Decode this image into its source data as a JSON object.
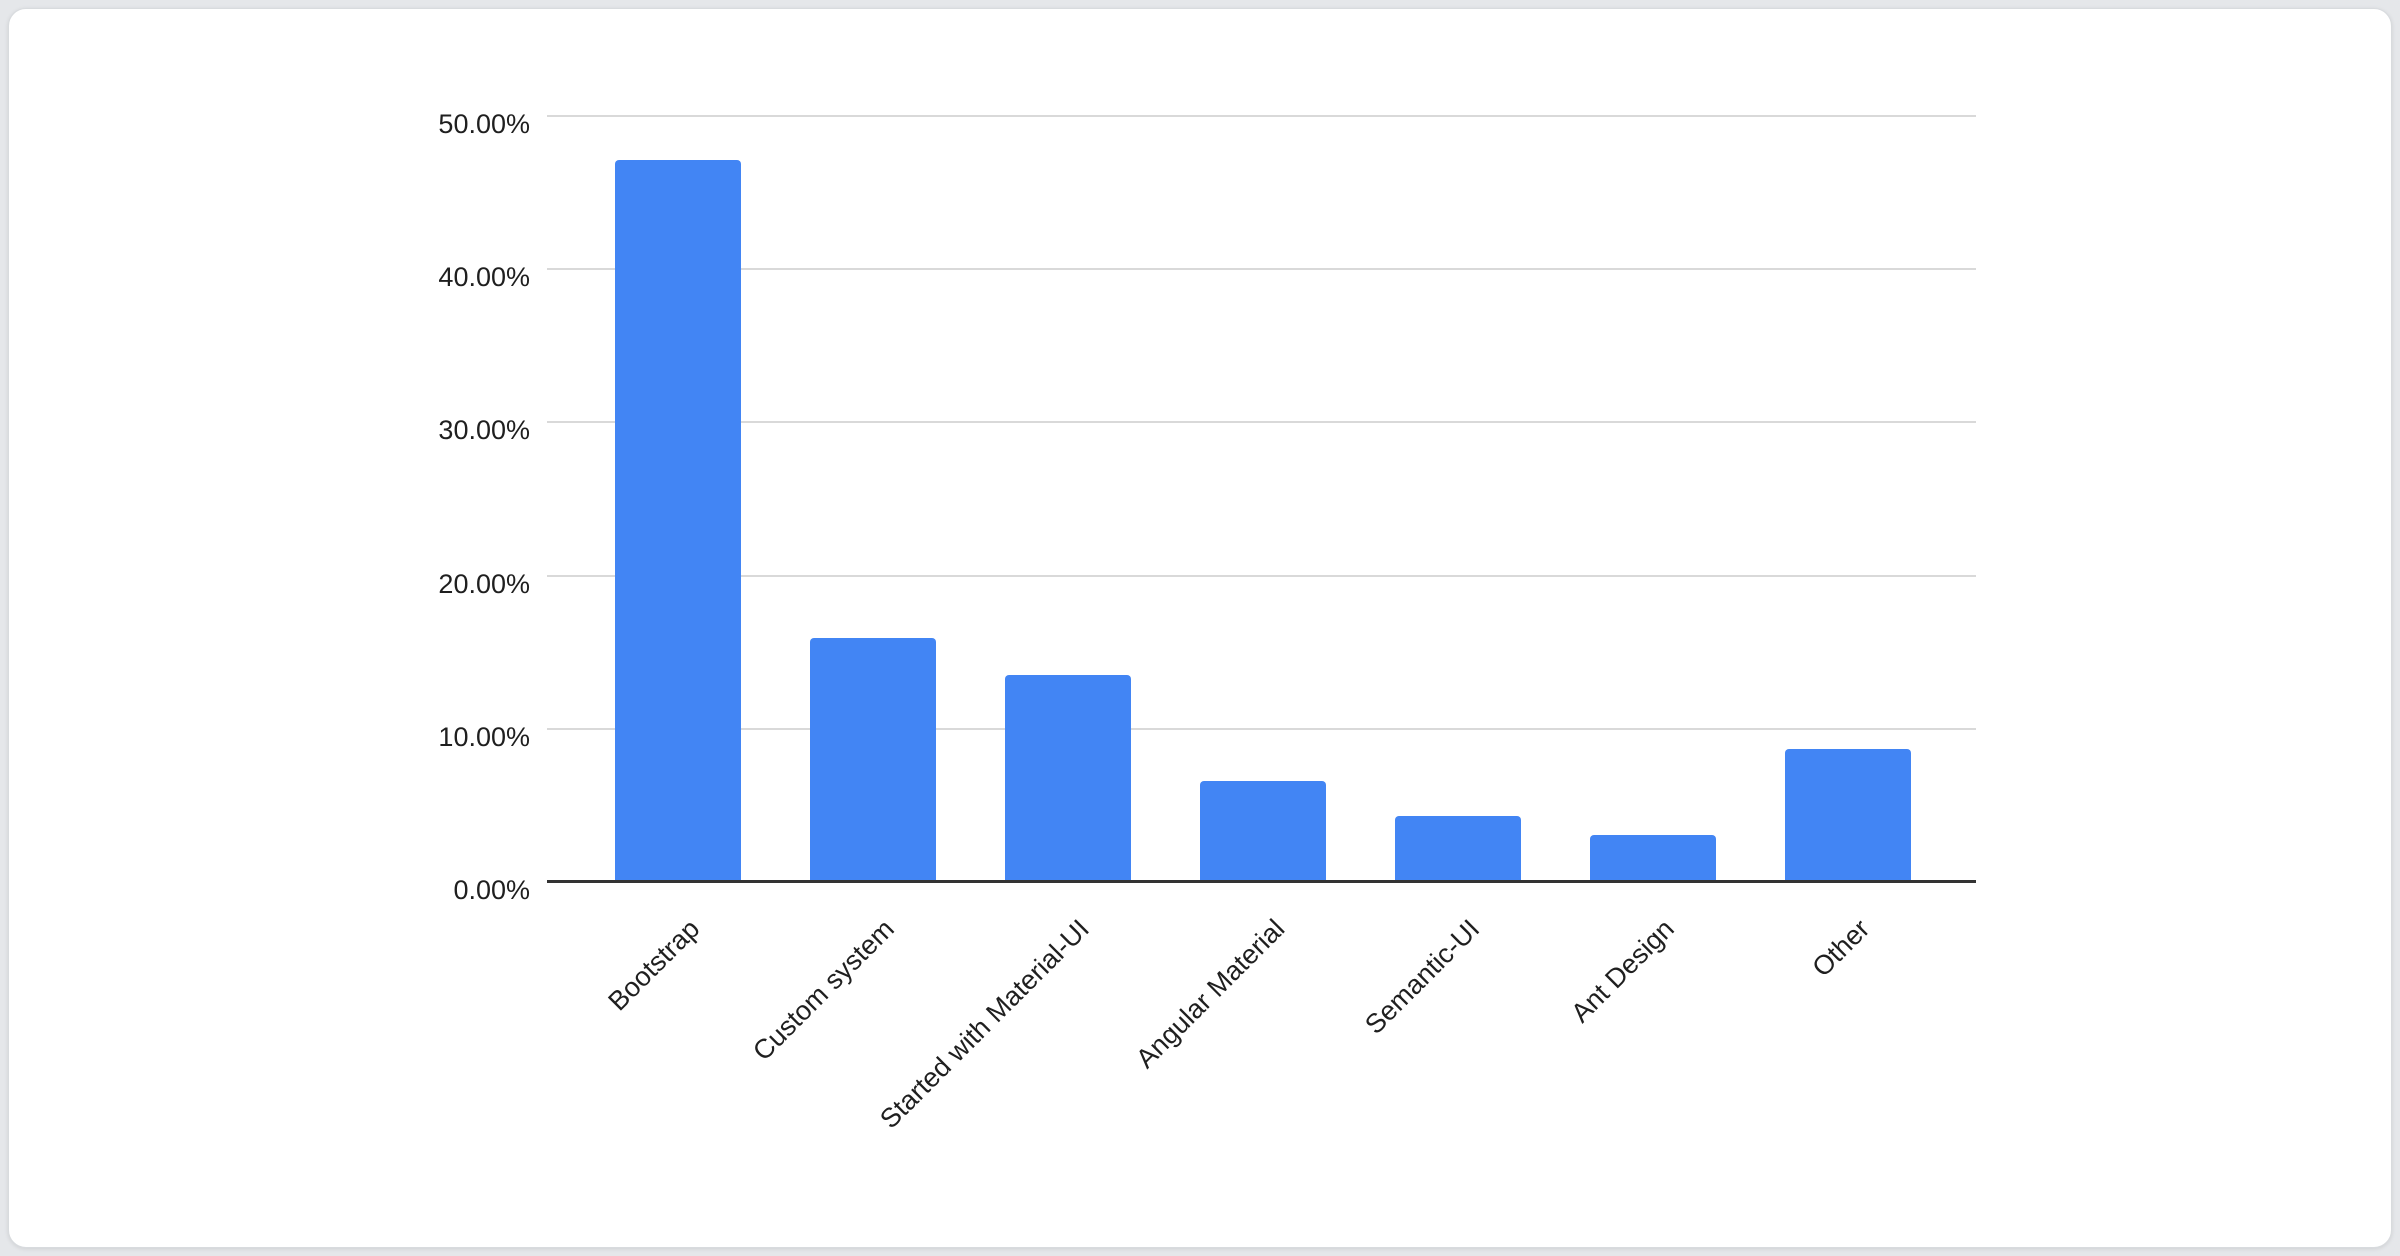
{
  "chart_data": {
    "type": "bar",
    "title": "",
    "xlabel": "",
    "ylabel": "",
    "categories": [
      "Bootstrap",
      "Custom system",
      "Started with Material-UI",
      "Angular Material",
      "Semantic-UI",
      "Ant Design",
      "Other"
    ],
    "values": [
      47.1,
      15.9,
      13.5,
      6.6,
      4.3,
      3.1,
      8.7
    ],
    "value_unit": "%",
    "ylim": [
      0,
      50
    ],
    "y_tick_values": [
      0,
      10,
      20,
      30,
      40,
      50
    ],
    "y_tick_labels": [
      "0.00%",
      "10.00%",
      "20.00%",
      "30.00%",
      "40.00%",
      "50.00%"
    ],
    "grid": true,
    "legend": "none",
    "x_labels_rotation_deg": 45,
    "bar_color": "#4285f4",
    "gridline_color": "#d9d9d9",
    "baseline_color": "#333333",
    "label_color": "#1f1f1f",
    "card_background": "#ffffff",
    "page_background": "#e5e7ea"
  }
}
